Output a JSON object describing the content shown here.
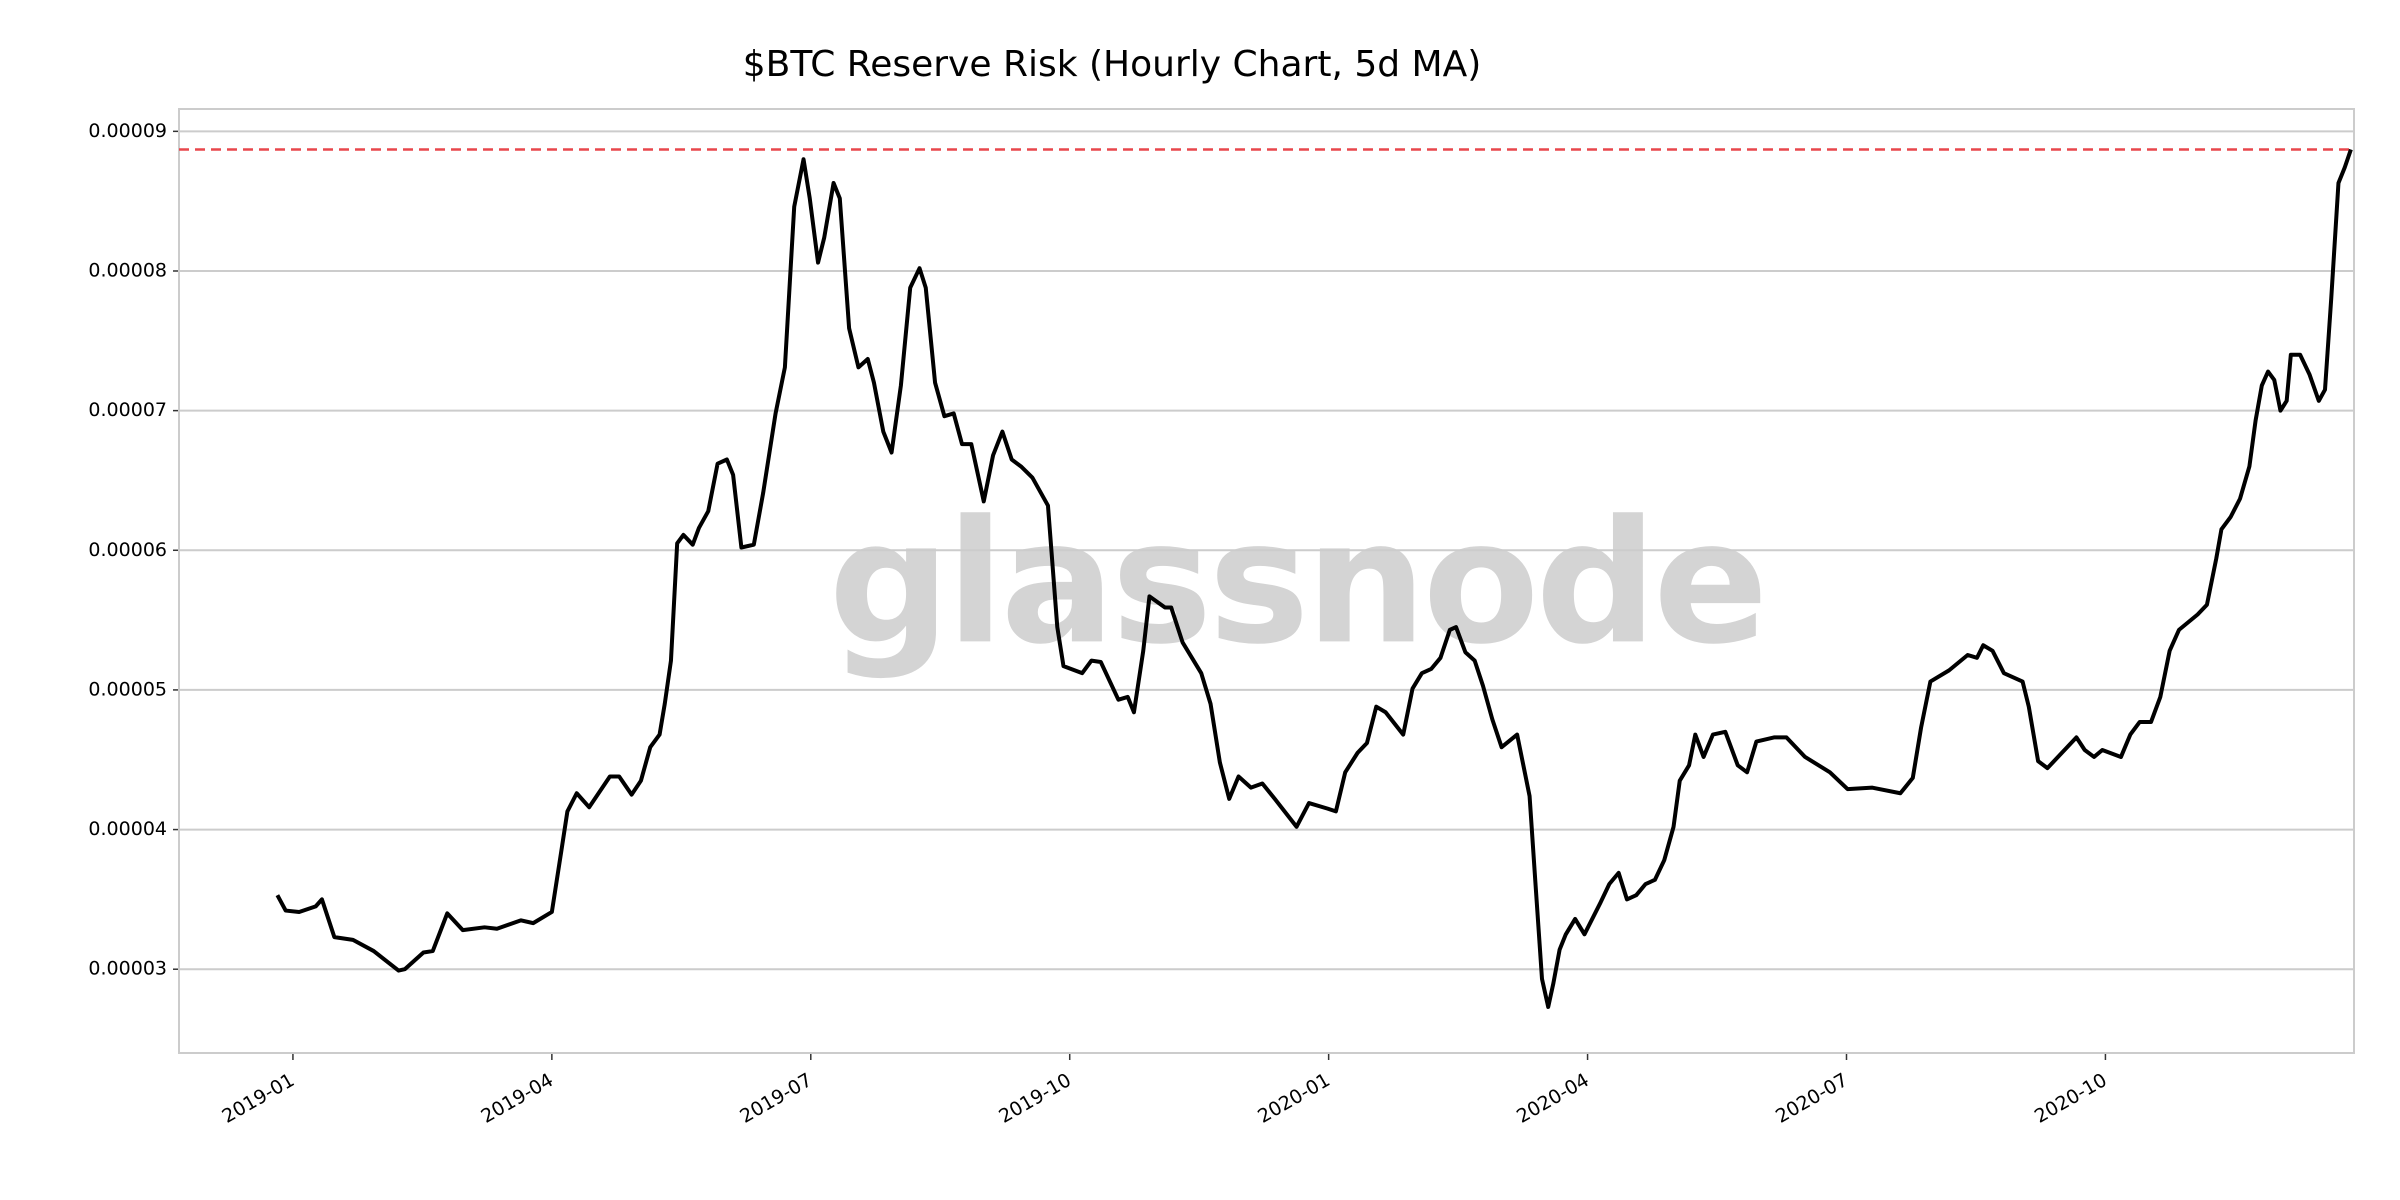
{
  "chart_data": {
    "type": "line",
    "title": "$BTC Reserve Risk (Hourly Chart, 5d MA)",
    "watermark": "glassnode",
    "xlim": [
      2018.89,
      2020.99
    ],
    "ylim": [
      2.4e-05,
      9.16e-05
    ],
    "xticks": [
      {
        "value": 2019.0,
        "label": "2019-01"
      },
      {
        "value": 2019.25,
        "label": "2019-04"
      },
      {
        "value": 2019.5,
        "label": "2019-07"
      },
      {
        "value": 2019.75,
        "label": "2019-10"
      },
      {
        "value": 2020.0,
        "label": "2020-01"
      },
      {
        "value": 2020.25,
        "label": "2020-04"
      },
      {
        "value": 2020.5,
        "label": "2020-07"
      },
      {
        "value": 2020.75,
        "label": "2020-10"
      }
    ],
    "yticks": [
      3e-05,
      4e-05,
      5e-05,
      6e-05,
      7e-05,
      8e-05,
      9e-05
    ],
    "grid": true,
    "reference_line": {
      "value": 8.87e-05,
      "color": "#e8474c"
    },
    "series": [
      {
        "color": "#000000",
        "x": [
          2018.985,
          2018.993,
          2019.006,
          2019.022,
          2019.028,
          2019.04,
          2019.058,
          2019.078,
          2019.102,
          2019.108,
          2019.126,
          2019.135,
          2019.149,
          2019.164,
          2019.185,
          2019.197,
          2019.22,
          2019.232,
          2019.25,
          2019.259,
          2019.265,
          2019.274,
          2019.286,
          2019.306,
          2019.315,
          2019.327,
          2019.336,
          2019.345,
          2019.354,
          2019.359,
          2019.365,
          2019.371,
          2019.377,
          2019.386,
          2019.392,
          2019.401,
          2019.41,
          2019.419,
          2019.425,
          2019.433,
          2019.445,
          2019.454,
          2019.466,
          2019.475,
          2019.484,
          2019.493,
          2019.499,
          2019.507,
          2019.513,
          2019.522,
          2019.528,
          2019.537,
          2019.546,
          2019.555,
          2019.561,
          2019.57,
          2019.578,
          2019.587,
          2019.596,
          2019.605,
          2019.611,
          2019.62,
          2019.629,
          2019.638,
          2019.646,
          2019.655,
          2019.667,
          2019.676,
          2019.685,
          2019.694,
          2019.703,
          2019.714,
          2019.729,
          2019.738,
          2019.744,
          2019.762,
          2019.771,
          2019.78,
          2019.797,
          2019.806,
          2019.812,
          2019.821,
          2019.827,
          2019.842,
          2019.848,
          2019.859,
          2019.877,
          2019.886,
          2019.895,
          2019.904,
          2019.913,
          2019.925,
          2019.936,
          2019.948,
          2019.969,
          2019.981,
          2019.999,
          2020.007,
          2020.016,
          2020.028,
          2020.037,
          2020.046,
          2020.055,
          2020.072,
          2020.081,
          2020.09,
          2020.099,
          2020.108,
          2020.117,
          2020.123,
          2020.132,
          2020.141,
          2020.149,
          2020.158,
          2020.167,
          2020.182,
          2020.188,
          2020.194,
          2020.2,
          2020.206,
          2020.212,
          2020.217,
          2020.223,
          2020.229,
          2020.238,
          2020.247,
          2020.262,
          2020.271,
          2020.28,
          2020.288,
          2020.297,
          2020.306,
          2020.315,
          2020.324,
          2020.333,
          2020.339,
          2020.348,
          2020.354,
          2020.362,
          2020.371,
          2020.383,
          2020.395,
          2020.404,
          2020.413,
          2020.43,
          2020.442,
          2020.46,
          2020.484,
          2020.501,
          2020.525,
          2020.552,
          2020.564,
          2020.572,
          2020.581,
          2020.599,
          2020.617,
          2020.626,
          2020.632,
          2020.641,
          2020.652,
          2020.67,
          2020.676,
          2020.685,
          2020.694,
          2020.722,
          2020.73,
          2020.739,
          2020.747,
          2020.765,
          2020.774,
          2020.783,
          2020.794,
          2020.803,
          2020.812,
          2020.821,
          2020.839,
          2020.848,
          2020.857,
          2020.862,
          2020.871,
          2020.88,
          2020.889,
          2020.895,
          2020.901,
          2020.907,
          2020.913,
          2020.919,
          2020.925,
          2020.929,
          2020.938,
          2020.947,
          2020.956,
          2020.962,
          2020.968,
          2020.975,
          2020.981,
          2020.987
        ],
        "values": [
          3.53e-05,
          3.42e-05,
          3.41e-05,
          3.45e-05,
          3.5e-05,
          3.23e-05,
          3.21e-05,
          3.13e-05,
          2.99e-05,
          3e-05,
          3.12e-05,
          3.13e-05,
          3.4e-05,
          3.28e-05,
          3.3e-05,
          3.29e-05,
          3.35e-05,
          3.33e-05,
          3.41e-05,
          3.84e-05,
          4.13e-05,
          4.26e-05,
          4.16e-05,
          4.38e-05,
          4.38e-05,
          4.25e-05,
          4.35e-05,
          4.59e-05,
          4.68e-05,
          4.9e-05,
          5.21e-05,
          6.05e-05,
          6.11e-05,
          6.04e-05,
          6.16e-05,
          6.28e-05,
          6.62e-05,
          6.65e-05,
          6.54e-05,
          6.02e-05,
          6.04e-05,
          6.41e-05,
          6.98e-05,
          7.31e-05,
          8.46e-05,
          8.8e-05,
          8.52e-05,
          8.06e-05,
          8.24e-05,
          8.63e-05,
          8.52e-05,
          7.59e-05,
          7.31e-05,
          7.37e-05,
          7.2e-05,
          6.85e-05,
          6.7e-05,
          7.18e-05,
          7.88e-05,
          8.02e-05,
          7.88e-05,
          7.2e-05,
          6.96e-05,
          6.98e-05,
          6.76e-05,
          6.76e-05,
          6.35e-05,
          6.68e-05,
          6.85e-05,
          6.65e-05,
          6.6e-05,
          6.52e-05,
          6.32e-05,
          5.45e-05,
          5.17e-05,
          5.12e-05,
          5.21e-05,
          5.2e-05,
          4.93e-05,
          4.95e-05,
          4.84e-05,
          5.28e-05,
          5.67e-05,
          5.59e-05,
          5.59e-05,
          5.34e-05,
          5.12e-05,
          4.9e-05,
          4.48e-05,
          4.22e-05,
          4.38e-05,
          4.3e-05,
          4.33e-05,
          4.22e-05,
          4.02e-05,
          4.19e-05,
          4.15e-05,
          4.13e-05,
          4.41e-05,
          4.55e-05,
          4.62e-05,
          4.88e-05,
          4.84e-05,
          4.68e-05,
          5.01e-05,
          5.12e-05,
          5.15e-05,
          5.23e-05,
          5.43e-05,
          5.45e-05,
          5.27e-05,
          5.21e-05,
          5.03e-05,
          4.79e-05,
          4.59e-05,
          4.68e-05,
          4.46e-05,
          4.24e-05,
          3.58e-05,
          2.93e-05,
          2.73e-05,
          2.9e-05,
          3.14e-05,
          3.25e-05,
          3.36e-05,
          3.25e-05,
          3.47e-05,
          3.61e-05,
          3.69e-05,
          3.5e-05,
          3.53e-05,
          3.61e-05,
          3.64e-05,
          3.78e-05,
          4.02e-05,
          4.35e-05,
          4.46e-05,
          4.68e-05,
          4.52e-05,
          4.68e-05,
          4.7e-05,
          4.46e-05,
          4.41e-05,
          4.63e-05,
          4.66e-05,
          4.66e-05,
          4.52e-05,
          4.41e-05,
          4.29e-05,
          4.3e-05,
          4.26e-05,
          4.37e-05,
          4.73e-05,
          5.06e-05,
          5.14e-05,
          5.25e-05,
          5.23e-05,
          5.32e-05,
          5.28e-05,
          5.12e-05,
          5.06e-05,
          4.88e-05,
          4.49e-05,
          4.44e-05,
          4.66e-05,
          4.57e-05,
          4.52e-05,
          4.57e-05,
          4.52e-05,
          4.68e-05,
          4.77e-05,
          4.77e-05,
          4.95e-05,
          5.28e-05,
          5.43e-05,
          5.54e-05,
          5.61e-05,
          5.94e-05,
          6.15e-05,
          6.24e-05,
          6.37e-05,
          6.6e-05,
          6.93e-05,
          7.18e-05,
          7.28e-05,
          7.22e-05,
          7e-05,
          7.07e-05,
          7.4e-05,
          7.4e-05,
          7.26e-05,
          7.07e-05,
          7.15e-05,
          7.8e-05,
          8.63e-05,
          8.74e-05,
          8.87e-05
        ]
      }
    ]
  }
}
